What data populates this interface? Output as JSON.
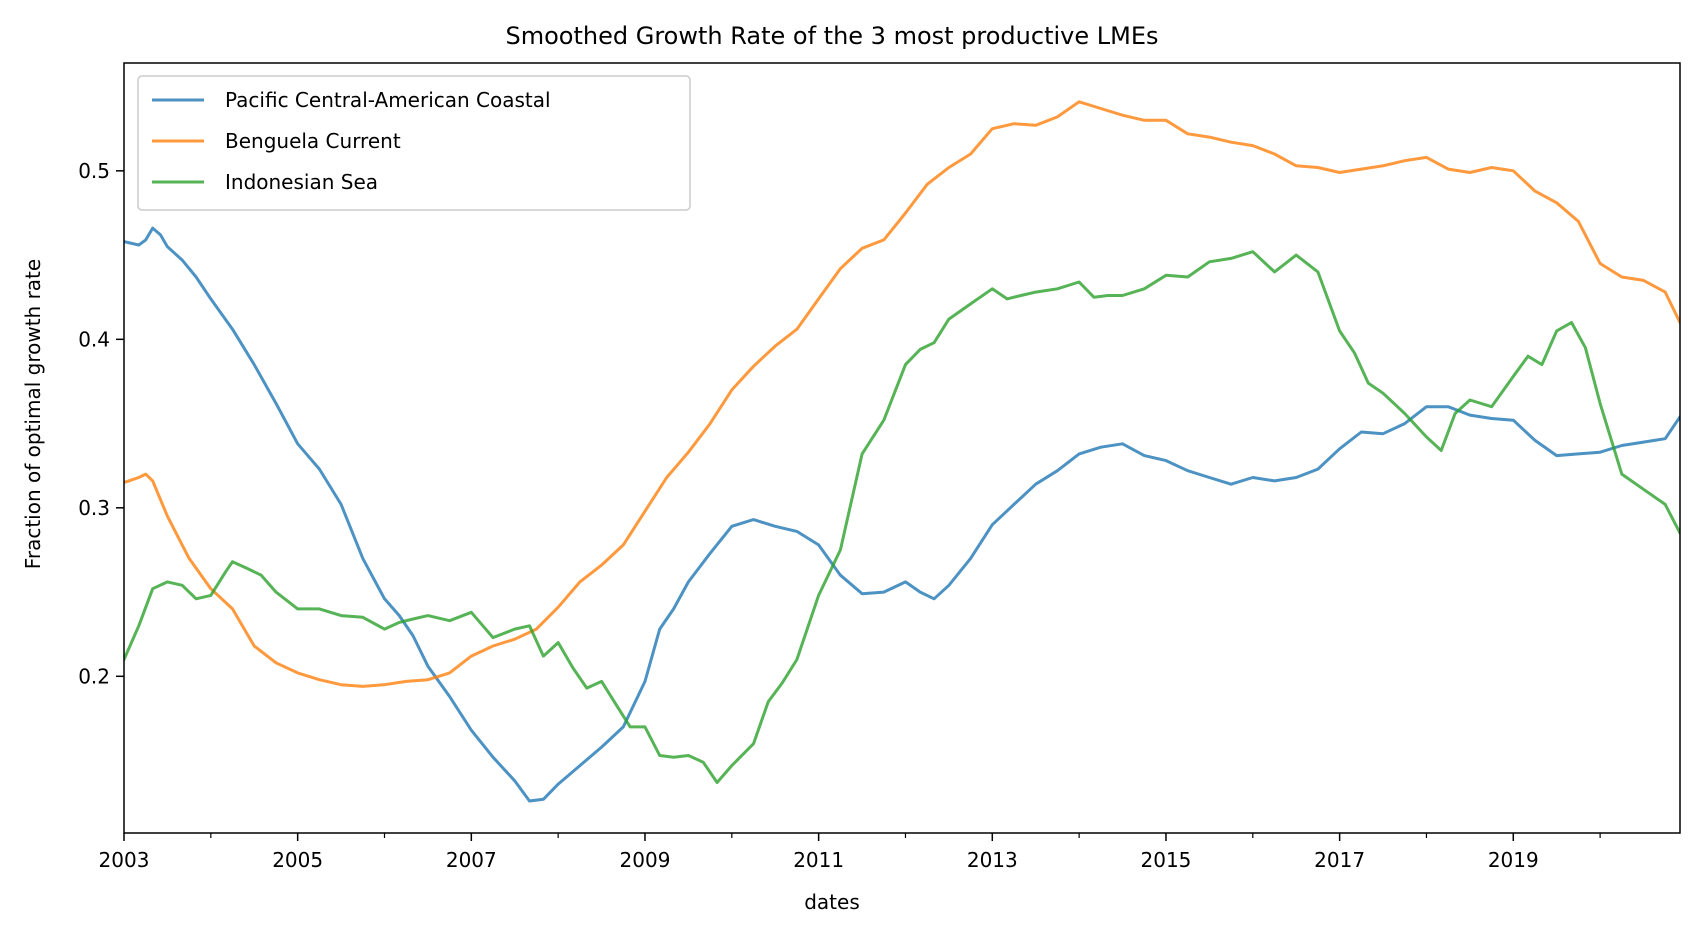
{
  "chart_data": {
    "type": "line",
    "title": "Smoothed Growth Rate of the 3 most productive LMEs",
    "xlabel": "dates",
    "ylabel": "Fraction of optimal growth rate",
    "xlim": [
      2003.0,
      2020.92
    ],
    "ylim": [
      0.107,
      0.564
    ],
    "xticks": [
      2003,
      2005,
      2007,
      2009,
      2011,
      2013,
      2015,
      2017,
      2019
    ],
    "xtick_labels": [
      "2003",
      "2005",
      "2007",
      "2009",
      "2011",
      "2013",
      "2015",
      "2017",
      "2019"
    ],
    "xminor_ticks": [
      2004,
      2006,
      2008,
      2010,
      2012,
      2014,
      2016,
      2018,
      2020
    ],
    "yticks": [
      0.2,
      0.3,
      0.4,
      0.5
    ],
    "ytick_labels": [
      "0.2",
      "0.3",
      "0.4",
      "0.5"
    ],
    "grid": false,
    "legend_position": "top-left",
    "series": [
      {
        "name": "Pacific Central-American Coastal",
        "color": "#1f77b4",
        "points": [
          [
            2003.0,
            0.458
          ],
          [
            2003.17,
            0.456
          ],
          [
            2003.25,
            0.459
          ],
          [
            2003.33,
            0.466
          ],
          [
            2003.42,
            0.462
          ],
          [
            2003.5,
            0.455
          ],
          [
            2003.67,
            0.447
          ],
          [
            2003.83,
            0.437
          ],
          [
            2004.0,
            0.424
          ],
          [
            2004.25,
            0.406
          ],
          [
            2004.5,
            0.385
          ],
          [
            2004.75,
            0.362
          ],
          [
            2005.0,
            0.338
          ],
          [
            2005.25,
            0.323
          ],
          [
            2005.5,
            0.302
          ],
          [
            2005.75,
            0.27
          ],
          [
            2006.0,
            0.246
          ],
          [
            2006.17,
            0.236
          ],
          [
            2006.33,
            0.224
          ],
          [
            2006.5,
            0.206
          ],
          [
            2006.75,
            0.188
          ],
          [
            2007.0,
            0.168
          ],
          [
            2007.25,
            0.152
          ],
          [
            2007.5,
            0.138
          ],
          [
            2007.67,
            0.126
          ],
          [
            2007.83,
            0.127
          ],
          [
            2008.0,
            0.136
          ],
          [
            2008.25,
            0.147
          ],
          [
            2008.5,
            0.158
          ],
          [
            2008.75,
            0.17
          ],
          [
            2009.0,
            0.197
          ],
          [
            2009.17,
            0.228
          ],
          [
            2009.33,
            0.24
          ],
          [
            2009.5,
            0.256
          ],
          [
            2009.75,
            0.273
          ],
          [
            2010.0,
            0.289
          ],
          [
            2010.25,
            0.293
          ],
          [
            2010.5,
            0.289
          ],
          [
            2010.75,
            0.286
          ],
          [
            2011.0,
            0.278
          ],
          [
            2011.25,
            0.26
          ],
          [
            2011.5,
            0.249
          ],
          [
            2011.75,
            0.25
          ],
          [
            2012.0,
            0.256
          ],
          [
            2012.17,
            0.25
          ],
          [
            2012.33,
            0.246
          ],
          [
            2012.5,
            0.254
          ],
          [
            2012.75,
            0.27
          ],
          [
            2013.0,
            0.29
          ],
          [
            2013.25,
            0.302
          ],
          [
            2013.5,
            0.314
          ],
          [
            2013.75,
            0.322
          ],
          [
            2014.0,
            0.332
          ],
          [
            2014.25,
            0.336
          ],
          [
            2014.5,
            0.338
          ],
          [
            2014.75,
            0.331
          ],
          [
            2015.0,
            0.328
          ],
          [
            2015.25,
            0.322
          ],
          [
            2015.5,
            0.318
          ],
          [
            2015.75,
            0.314
          ],
          [
            2016.0,
            0.318
          ],
          [
            2016.25,
            0.316
          ],
          [
            2016.5,
            0.318
          ],
          [
            2016.75,
            0.323
          ],
          [
            2017.0,
            0.335
          ],
          [
            2017.25,
            0.345
          ],
          [
            2017.5,
            0.344
          ],
          [
            2017.75,
            0.35
          ],
          [
            2018.0,
            0.36
          ],
          [
            2018.25,
            0.36
          ],
          [
            2018.5,
            0.355
          ],
          [
            2018.75,
            0.353
          ],
          [
            2019.0,
            0.352
          ],
          [
            2019.25,
            0.34
          ],
          [
            2019.5,
            0.331
          ],
          [
            2019.75,
            0.332
          ],
          [
            2020.0,
            0.333
          ],
          [
            2020.25,
            0.337
          ],
          [
            2020.5,
            0.339
          ],
          [
            2020.75,
            0.341
          ],
          [
            2020.92,
            0.354
          ]
        ]
      },
      {
        "name": "Benguela Current",
        "color": "#ff7f0e",
        "points": [
          [
            2003.0,
            0.315
          ],
          [
            2003.17,
            0.318
          ],
          [
            2003.25,
            0.32
          ],
          [
            2003.33,
            0.316
          ],
          [
            2003.5,
            0.295
          ],
          [
            2003.75,
            0.27
          ],
          [
            2004.0,
            0.252
          ],
          [
            2004.25,
            0.24
          ],
          [
            2004.5,
            0.218
          ],
          [
            2004.75,
            0.208
          ],
          [
            2005.0,
            0.202
          ],
          [
            2005.25,
            0.198
          ],
          [
            2005.5,
            0.195
          ],
          [
            2005.75,
            0.194
          ],
          [
            2006.0,
            0.195
          ],
          [
            2006.25,
            0.197
          ],
          [
            2006.5,
            0.198
          ],
          [
            2006.75,
            0.202
          ],
          [
            2007.0,
            0.212
          ],
          [
            2007.25,
            0.218
          ],
          [
            2007.5,
            0.222
          ],
          [
            2007.75,
            0.228
          ],
          [
            2008.0,
            0.241
          ],
          [
            2008.25,
            0.256
          ],
          [
            2008.5,
            0.266
          ],
          [
            2008.75,
            0.278
          ],
          [
            2009.0,
            0.298
          ],
          [
            2009.25,
            0.318
          ],
          [
            2009.5,
            0.333
          ],
          [
            2009.75,
            0.35
          ],
          [
            2010.0,
            0.37
          ],
          [
            2010.25,
            0.384
          ],
          [
            2010.5,
            0.396
          ],
          [
            2010.75,
            0.406
          ],
          [
            2011.0,
            0.424
          ],
          [
            2011.25,
            0.442
          ],
          [
            2011.5,
            0.454
          ],
          [
            2011.75,
            0.459
          ],
          [
            2012.0,
            0.475
          ],
          [
            2012.25,
            0.492
          ],
          [
            2012.5,
            0.502
          ],
          [
            2012.75,
            0.51
          ],
          [
            2013.0,
            0.525
          ],
          [
            2013.25,
            0.528
          ],
          [
            2013.5,
            0.527
          ],
          [
            2013.75,
            0.532
          ],
          [
            2014.0,
            0.541
          ],
          [
            2014.25,
            0.537
          ],
          [
            2014.5,
            0.533
          ],
          [
            2014.75,
            0.53
          ],
          [
            2015.0,
            0.53
          ],
          [
            2015.25,
            0.522
          ],
          [
            2015.5,
            0.52
          ],
          [
            2015.75,
            0.517
          ],
          [
            2016.0,
            0.515
          ],
          [
            2016.25,
            0.51
          ],
          [
            2016.5,
            0.503
          ],
          [
            2016.75,
            0.502
          ],
          [
            2017.0,
            0.499
          ],
          [
            2017.25,
            0.501
          ],
          [
            2017.5,
            0.503
          ],
          [
            2017.75,
            0.506
          ],
          [
            2018.0,
            0.508
          ],
          [
            2018.25,
            0.501
          ],
          [
            2018.5,
            0.499
          ],
          [
            2018.75,
            0.502
          ],
          [
            2019.0,
            0.5
          ],
          [
            2019.25,
            0.488
          ],
          [
            2019.5,
            0.481
          ],
          [
            2019.75,
            0.47
          ],
          [
            2020.0,
            0.445
          ],
          [
            2020.25,
            0.437
          ],
          [
            2020.5,
            0.435
          ],
          [
            2020.75,
            0.428
          ],
          [
            2020.92,
            0.41
          ]
        ]
      },
      {
        "name": "Indonesian Sea",
        "color": "#2ca02c",
        "points": [
          [
            2003.0,
            0.21
          ],
          [
            2003.17,
            0.23
          ],
          [
            2003.33,
            0.252
          ],
          [
            2003.5,
            0.256
          ],
          [
            2003.67,
            0.254
          ],
          [
            2003.83,
            0.246
          ],
          [
            2004.0,
            0.248
          ],
          [
            2004.17,
            0.262
          ],
          [
            2004.25,
            0.268
          ],
          [
            2004.42,
            0.264
          ],
          [
            2004.58,
            0.26
          ],
          [
            2004.75,
            0.25
          ],
          [
            2005.0,
            0.24
          ],
          [
            2005.25,
            0.24
          ],
          [
            2005.5,
            0.236
          ],
          [
            2005.75,
            0.235
          ],
          [
            2006.0,
            0.228
          ],
          [
            2006.17,
            0.232
          ],
          [
            2006.33,
            0.234
          ],
          [
            2006.5,
            0.236
          ],
          [
            2006.75,
            0.233
          ],
          [
            2007.0,
            0.238
          ],
          [
            2007.25,
            0.223
          ],
          [
            2007.5,
            0.228
          ],
          [
            2007.67,
            0.23
          ],
          [
            2007.83,
            0.212
          ],
          [
            2008.0,
            0.22
          ],
          [
            2008.17,
            0.205
          ],
          [
            2008.33,
            0.193
          ],
          [
            2008.5,
            0.197
          ],
          [
            2008.67,
            0.183
          ],
          [
            2008.83,
            0.17
          ],
          [
            2009.0,
            0.17
          ],
          [
            2009.17,
            0.153
          ],
          [
            2009.33,
            0.152
          ],
          [
            2009.5,
            0.153
          ],
          [
            2009.67,
            0.149
          ],
          [
            2009.83,
            0.137
          ],
          [
            2010.0,
            0.147
          ],
          [
            2010.25,
            0.16
          ],
          [
            2010.42,
            0.185
          ],
          [
            2010.58,
            0.196
          ],
          [
            2010.75,
            0.21
          ],
          [
            2011.0,
            0.248
          ],
          [
            2011.25,
            0.275
          ],
          [
            2011.5,
            0.332
          ],
          [
            2011.75,
            0.352
          ],
          [
            2012.0,
            0.385
          ],
          [
            2012.17,
            0.394
          ],
          [
            2012.33,
            0.398
          ],
          [
            2012.5,
            0.412
          ],
          [
            2012.75,
            0.421
          ],
          [
            2013.0,
            0.43
          ],
          [
            2013.17,
            0.424
          ],
          [
            2013.33,
            0.426
          ],
          [
            2013.5,
            0.428
          ],
          [
            2013.75,
            0.43
          ],
          [
            2014.0,
            0.434
          ],
          [
            2014.17,
            0.425
          ],
          [
            2014.33,
            0.426
          ],
          [
            2014.5,
            0.426
          ],
          [
            2014.75,
            0.43
          ],
          [
            2015.0,
            0.438
          ],
          [
            2015.25,
            0.437
          ],
          [
            2015.5,
            0.446
          ],
          [
            2015.75,
            0.448
          ],
          [
            2016.0,
            0.452
          ],
          [
            2016.25,
            0.44
          ],
          [
            2016.5,
            0.45
          ],
          [
            2016.75,
            0.44
          ],
          [
            2017.0,
            0.405
          ],
          [
            2017.17,
            0.392
          ],
          [
            2017.33,
            0.374
          ],
          [
            2017.5,
            0.368
          ],
          [
            2017.75,
            0.356
          ],
          [
            2018.0,
            0.342
          ],
          [
            2018.17,
            0.334
          ],
          [
            2018.33,
            0.356
          ],
          [
            2018.5,
            0.364
          ],
          [
            2018.75,
            0.36
          ],
          [
            2019.0,
            0.378
          ],
          [
            2019.17,
            0.39
          ],
          [
            2019.33,
            0.385
          ],
          [
            2019.5,
            0.405
          ],
          [
            2019.67,
            0.41
          ],
          [
            2019.83,
            0.395
          ],
          [
            2020.0,
            0.362
          ],
          [
            2020.25,
            0.32
          ],
          [
            2020.5,
            0.311
          ],
          [
            2020.75,
            0.302
          ],
          [
            2020.92,
            0.285
          ]
        ]
      }
    ]
  }
}
